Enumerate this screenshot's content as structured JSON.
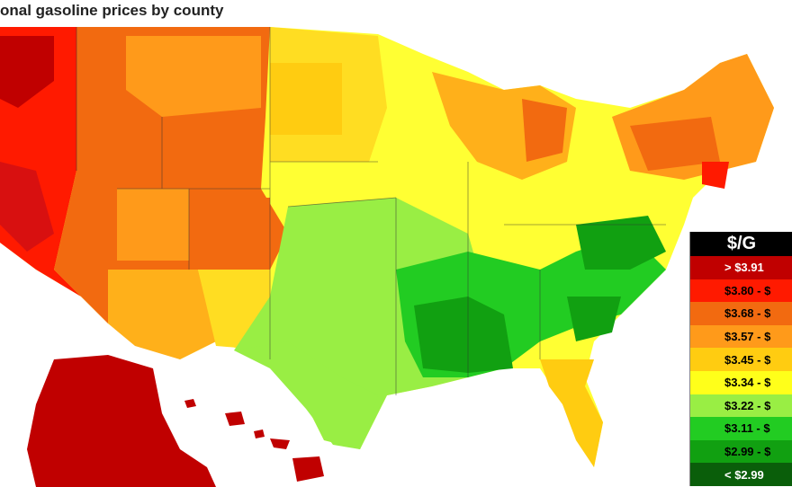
{
  "map": {
    "title": "onal gasoline prices by county"
  },
  "legend": {
    "title": "$/G",
    "items": [
      {
        "label": "> $3.91",
        "color": "#c00000",
        "text_color": "#ffffff"
      },
      {
        "label": "$3.80 - $",
        "color": "#ff1a00",
        "text_color": "#000000"
      },
      {
        "label": "$3.68 - $",
        "color": "#f26a10",
        "text_color": "#000000"
      },
      {
        "label": "$3.57 - $",
        "color": "#ff9a1a",
        "text_color": "#000000"
      },
      {
        "label": "$3.45 - $",
        "color": "#ffcc11",
        "text_color": "#000000"
      },
      {
        "label": "$3.34 - $",
        "color": "#ffff1a",
        "text_color": "#000000"
      },
      {
        "label": "$3.22 - $",
        "color": "#99ee44",
        "text_color": "#000000"
      },
      {
        "label": "$3.11 - $",
        "color": "#22cc22",
        "text_color": "#000000"
      },
      {
        "label": "$2.99 - $",
        "color": "#11a011",
        "text_color": "#000000"
      },
      {
        "label": "< $2.99",
        "color": "#0a5e0a",
        "text_color": "#ffffff"
      }
    ]
  }
}
